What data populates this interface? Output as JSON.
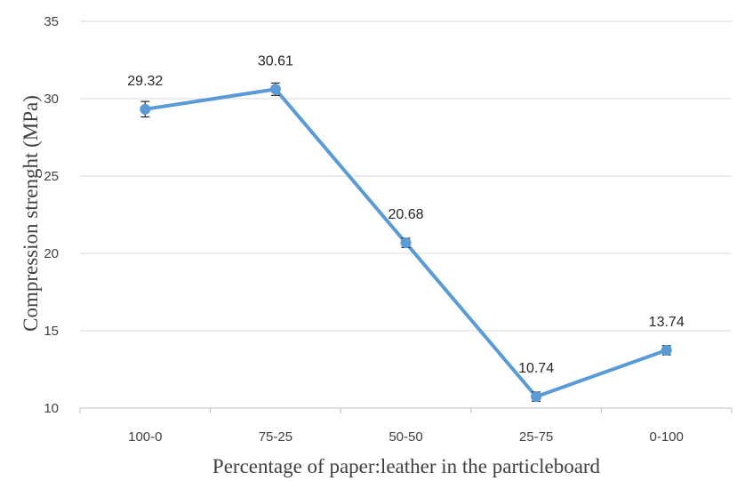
{
  "chart_data": {
    "type": "line",
    "title": "",
    "xlabel": "Percentage of paper:leather in the particleboard",
    "ylabel": "Compression strenght (MPa)",
    "categories": [
      "100-0",
      "75-25",
      "50-50",
      "25-75",
      "0-100"
    ],
    "series": [
      {
        "values": [
          29.32,
          30.61,
          20.68,
          10.74,
          13.74
        ],
        "labels": [
          "29.32",
          "30.61",
          "20.68",
          "10.74",
          "13.74"
        ],
        "error": [
          0.5,
          0.4,
          0.3,
          0.3,
          0.3
        ],
        "color": "#5b9bd5"
      }
    ],
    "ylim": [
      10,
      35
    ],
    "yticks": [
      10,
      15,
      20,
      25,
      30,
      35
    ],
    "grid": true,
    "legend": "none"
  }
}
